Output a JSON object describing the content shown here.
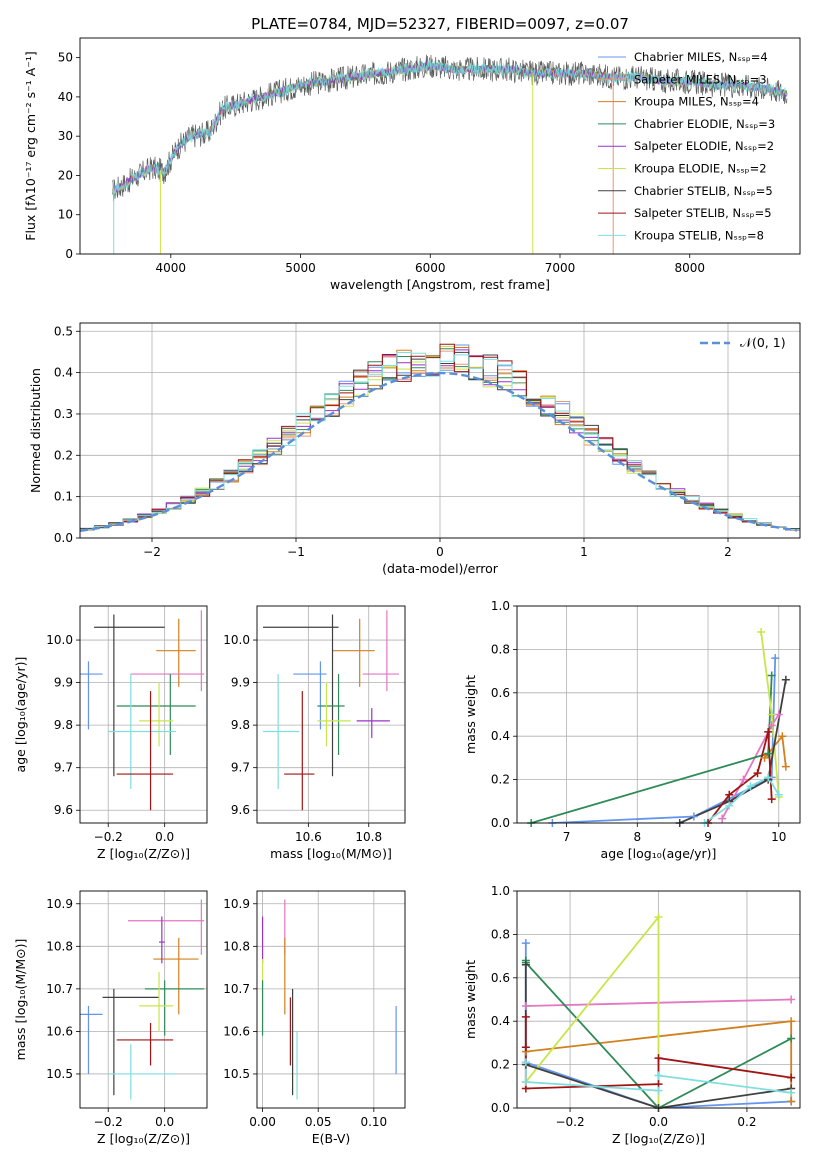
{
  "colors": {
    "chabrier_miles": "#6495ed",
    "salpeter_miles": "#e9967a",
    "kroupa_miles": "#d2801e",
    "chabrier_elodie": "#2e8b57",
    "salpeter_elodie": "#9932cc",
    "kroupa_elodie": "#c8e64b",
    "chabrier_stelib": "#404040",
    "salpeter_stelib": "#a01414",
    "kroupa_stelib": "#7fdede",
    "pink": "#e377c2",
    "normal_curve": "#5b8fd8"
  },
  "chart_data": [
    {
      "id": "spectrum",
      "type": "line",
      "title": "PLATE=0784, MJD=52327, FIBERID=0097, z=0.07",
      "xlabel": "wavelength [Angstrom, rest frame]",
      "ylabel": "Flux [fλ10⁻¹⁷ erg cm⁻² s⁻¹ A⁻¹]",
      "xlim": [
        3300,
        8850
      ],
      "ylim": [
        0,
        55
      ],
      "xticks": [
        "4000",
        "5000",
        "6000",
        "7000",
        "8000"
      ],
      "yticks": [
        "0",
        "10",
        "20",
        "30",
        "40",
        "50"
      ],
      "legend_position": "right",
      "legend": [
        {
          "label": "Chabrier MILES, Nₛₛₚ=4",
          "color": "chabrier_miles"
        },
        {
          "label": "Salpeter MILES, Nₛₛₚ=3",
          "color": "salpeter_miles"
        },
        {
          "label": "Kroupa MILES, Nₛₛₚ=4",
          "color": "kroupa_miles"
        },
        {
          "label": "Chabrier ELODIE, Nₛₛₚ=3",
          "color": "chabrier_elodie"
        },
        {
          "label": "Salpeter ELODIE, Nₛₛₚ=2",
          "color": "salpeter_elodie"
        },
        {
          "label": "Kroupa ELODIE, Nₛₛₚ=2",
          "color": "kroupa_elodie"
        },
        {
          "label": "Chabrier STELIB, Nₛₛₚ=5",
          "color": "chabrier_stelib"
        },
        {
          "label": "Salpeter STELIB, Nₛₛₚ=5",
          "color": "salpeter_stelib"
        },
        {
          "label": "Kroupa STELIB, Nₛₛₚ=8",
          "color": "kroupa_stelib"
        }
      ],
      "continuum": {
        "x": [
          3550,
          3700,
          3850,
          3950,
          4050,
          4150,
          4300,
          4400,
          4600,
          4800,
          5000,
          5200,
          5400,
          5600,
          5800,
          6000,
          6200,
          6400,
          6600,
          6800,
          7000,
          7200,
          7400,
          7600,
          7800,
          8000,
          8200,
          8400,
          8600,
          8750
        ],
        "y": [
          16,
          19,
          22,
          21,
          27,
          30,
          31,
          37,
          39,
          41,
          43,
          44,
          45,
          46,
          47,
          48,
          47,
          47,
          47,
          46,
          46,
          46,
          45,
          45,
          44,
          44,
          43,
          43,
          42,
          41
        ]
      }
    },
    {
      "id": "residuals",
      "type": "line",
      "xlabel": "(data-model)/error",
      "ylabel": "Normed distribution",
      "xlim": [
        -2.5,
        2.5
      ],
      "ylim": [
        0,
        0.52
      ],
      "xticks": [
        "−2",
        "−1",
        "0",
        "1",
        "2"
      ],
      "yticks": [
        "0.0",
        "0.1",
        "0.2",
        "0.3",
        "0.4",
        "0.5"
      ],
      "grid": true,
      "legend": [
        {
          "label": "𝒩(0, 1)",
          "color": "normal_curve"
        }
      ],
      "legend_position": "top-right",
      "bin_width": 0.1
    },
    {
      "id": "age_vs_Z",
      "type": "scatter",
      "xlabel": "Z [log₁₀(Z/Z⊙)]",
      "ylabel": "age  [log₁₀(age/yr)]",
      "xlim": [
        -0.3,
        0.15
      ],
      "ylim": [
        9.57,
        10.08
      ],
      "xticks": [
        "−0.2",
        "0.0"
      ],
      "yticks": [
        "9.6",
        "9.7",
        "9.8",
        "9.9",
        "10.0"
      ],
      "grid": true,
      "points": [
        {
          "color": "chabrier_miles",
          "x": -0.27,
          "y": 9.92,
          "xlo": -0.3,
          "xhi": -0.22,
          "ylo": 9.79,
          "yhi": 9.95
        },
        {
          "color": "kroupa_miles",
          "x": 0.05,
          "y": 9.975,
          "xlo": -0.03,
          "xhi": 0.11,
          "ylo": 9.89,
          "yhi": 10.05
        },
        {
          "color": "pink",
          "x": 0.13,
          "y": 9.92,
          "xlo": -0.12,
          "xhi": 0.14,
          "ylo": 9.88,
          "yhi": 10.07
        },
        {
          "color": "chabrier_stelib",
          "x": -0.18,
          "y": 10.03,
          "xlo": -0.25,
          "xhi": 0.0,
          "ylo": 9.68,
          "yhi": 10.06
        },
        {
          "color": "chabrier_elodie",
          "x": 0.02,
          "y": 9.845,
          "xlo": -0.17,
          "xhi": 0.11,
          "ylo": 9.73,
          "yhi": 9.92
        },
        {
          "color": "kroupa_elodie",
          "x": -0.02,
          "y": 9.81,
          "xlo": -0.09,
          "xhi": 0.03,
          "ylo": 9.75,
          "yhi": 9.9
        },
        {
          "color": "kroupa_stelib",
          "x": -0.12,
          "y": 9.785,
          "xlo": -0.2,
          "xhi": 0.04,
          "ylo": 9.65,
          "yhi": 9.92
        },
        {
          "color": "salpeter_stelib",
          "x": -0.05,
          "y": 9.685,
          "xlo": -0.17,
          "xhi": 0.03,
          "ylo": 9.6,
          "yhi": 9.88
        }
      ]
    },
    {
      "id": "age_vs_mass",
      "type": "scatter",
      "xlabel": "mass [log₁₀(M/M⊙)]",
      "ylabel": "",
      "xlim": [
        10.43,
        10.92
      ],
      "ylim": [
        9.57,
        10.08
      ],
      "xticks": [
        "10.6",
        "10.8"
      ],
      "yticks": [
        "9.6",
        "9.7",
        "9.8",
        "9.9",
        "10.0"
      ],
      "grid": true,
      "points": [
        {
          "color": "chabrier_miles",
          "x": 10.64,
          "y": 9.92,
          "xlo": 10.55,
          "xhi": 10.66,
          "ylo": 9.79,
          "yhi": 9.95
        },
        {
          "color": "kroupa_miles",
          "x": 10.77,
          "y": 9.975,
          "xlo": 10.68,
          "xhi": 10.82,
          "ylo": 9.89,
          "yhi": 10.05
        },
        {
          "color": "pink",
          "x": 10.86,
          "y": 9.92,
          "xlo": 10.78,
          "xhi": 10.9,
          "ylo": 9.88,
          "yhi": 10.07
        },
        {
          "color": "chabrier_stelib",
          "x": 10.68,
          "y": 10.03,
          "xlo": 10.45,
          "xhi": 10.7,
          "ylo": 9.68,
          "yhi": 10.06
        },
        {
          "color": "chabrier_elodie",
          "x": 10.7,
          "y": 9.845,
          "xlo": 10.63,
          "xhi": 10.72,
          "ylo": 9.73,
          "yhi": 9.92
        },
        {
          "color": "salpeter_elodie",
          "x": 10.81,
          "y": 9.81,
          "xlo": 10.76,
          "xhi": 10.87,
          "ylo": 9.77,
          "yhi": 9.84
        },
        {
          "color": "kroupa_elodie",
          "x": 10.66,
          "y": 9.81,
          "xlo": 10.63,
          "xhi": 10.74,
          "ylo": 9.75,
          "yhi": 9.9
        },
        {
          "color": "kroupa_stelib",
          "x": 10.5,
          "y": 9.785,
          "xlo": 10.45,
          "xhi": 10.57,
          "ylo": 9.65,
          "yhi": 9.92
        },
        {
          "color": "salpeter_stelib",
          "x": 10.58,
          "y": 9.685,
          "xlo": 10.52,
          "xhi": 10.62,
          "ylo": 9.6,
          "yhi": 9.88
        }
      ]
    },
    {
      "id": "weight_vs_age",
      "type": "line",
      "xlabel": "age  [log₁₀(age/yr)]",
      "ylabel": "mass weight",
      "xlim": [
        6.3,
        10.3
      ],
      "ylim": [
        0,
        1.0
      ],
      "xticks": [
        "7",
        "8",
        "9",
        "10"
      ],
      "yticks": [
        "0.0",
        "0.2",
        "0.4",
        "0.6",
        "0.8",
        "1.0"
      ],
      "grid": true,
      "series": [
        {
          "color": "chabrier_miles",
          "x": [
            6.8,
            8.8,
            9.9,
            9.95
          ],
          "y": [
            0.0,
            0.03,
            0.21,
            0.76
          ]
        },
        {
          "color": "kroupa_miles",
          "x": [
            9.8,
            10.05,
            10.1
          ],
          "y": [
            0.3,
            0.4,
            0.26
          ]
        },
        {
          "color": "pink",
          "x": [
            9.2,
            9.5,
            9.9,
            10.0
          ],
          "y": [
            0.02,
            0.2,
            0.45,
            0.5
          ]
        },
        {
          "color": "chabrier_elodie",
          "x": [
            6.5,
            9.85,
            9.9
          ],
          "y": [
            0.0,
            0.32,
            0.68
          ]
        },
        {
          "color": "kroupa_elodie",
          "x": [
            9.75,
            9.9,
            10.0
          ],
          "y": [
            0.88,
            0.5,
            0.12
          ]
        },
        {
          "color": "chabrier_stelib",
          "x": [
            8.6,
            9.3,
            9.85,
            10.1
          ],
          "y": [
            0.0,
            0.1,
            0.2,
            0.66
          ]
        },
        {
          "color": "salpeter_stelib",
          "x": [
            9.0,
            9.3,
            9.7,
            9.85,
            9.9
          ],
          "y": [
            0.0,
            0.13,
            0.23,
            0.42,
            0.11
          ]
        },
        {
          "color": "kroupa_stelib",
          "x": [
            8.95,
            9.3,
            9.6,
            9.85,
            10.0
          ],
          "y": [
            0.0,
            0.08,
            0.17,
            0.21,
            0.13
          ]
        }
      ]
    },
    {
      "id": "mass_vs_Z",
      "type": "scatter",
      "xlabel": "Z [log₁₀(Z/Z⊙)]",
      "ylabel": "mass [log₁₀(M/M⊙)]",
      "xlim": [
        -0.3,
        0.15
      ],
      "ylim": [
        10.42,
        10.93
      ],
      "xticks": [
        "−0.2",
        "0.0"
      ],
      "yticks": [
        "10.5",
        "10.6",
        "10.7",
        "10.8",
        "10.9"
      ],
      "grid": true,
      "points": [
        {
          "color": "chabrier_miles",
          "x": -0.27,
          "y": 10.64,
          "xlo": -0.3,
          "xhi": -0.22,
          "ylo": 10.5,
          "yhi": 10.66
        },
        {
          "color": "kroupa_miles",
          "x": 0.05,
          "y": 10.77,
          "xlo": -0.04,
          "xhi": 0.12,
          "ylo": 10.64,
          "yhi": 10.82
        },
        {
          "color": "pink",
          "x": 0.13,
          "y": 10.86,
          "xlo": -0.13,
          "xhi": 0.14,
          "ylo": 10.78,
          "yhi": 10.91
        },
        {
          "color": "salpeter_elodie",
          "x": -0.01,
          "y": 10.81,
          "xlo": -0.02,
          "xhi": 0.0,
          "ylo": 10.76,
          "yhi": 10.87
        },
        {
          "color": "chabrier_stelib",
          "x": -0.18,
          "y": 10.68,
          "xlo": -0.22,
          "xhi": -0.02,
          "ylo": 10.45,
          "yhi": 10.7
        },
        {
          "color": "chabrier_elodie",
          "x": 0.0,
          "y": 10.7,
          "xlo": -0.07,
          "xhi": 0.14,
          "ylo": 10.59,
          "yhi": 10.72
        },
        {
          "color": "kroupa_elodie",
          "x": -0.02,
          "y": 10.66,
          "xlo": -0.09,
          "xhi": 0.03,
          "ylo": 10.6,
          "yhi": 10.74
        },
        {
          "color": "kroupa_stelib",
          "x": -0.12,
          "y": 10.5,
          "xlo": -0.2,
          "xhi": 0.04,
          "ylo": 10.44,
          "yhi": 10.57
        },
        {
          "color": "salpeter_stelib",
          "x": -0.05,
          "y": 10.58,
          "xlo": -0.17,
          "xhi": 0.03,
          "ylo": 10.52,
          "yhi": 10.62
        }
      ]
    },
    {
      "id": "mass_vs_ebv",
      "type": "scatter",
      "xlabel": "E(B-V)",
      "ylabel": "",
      "xlim": [
        -0.005,
        0.128
      ],
      "ylim": [
        10.42,
        10.93
      ],
      "xticks": [
        "0.00",
        "0.05",
        "0.10"
      ],
      "yticks": [
        "10.5",
        "10.6",
        "10.7",
        "10.8",
        "10.9"
      ],
      "grid": true,
      "points": [
        {
          "color": "chabrier_miles",
          "x": 0.12,
          "ylo": 10.5,
          "yhi": 10.66
        },
        {
          "color": "salpeter_elodie",
          "x": 0.0,
          "ylo": 10.76,
          "yhi": 10.87
        },
        {
          "color": "kroupa_elodie",
          "x": 0.0,
          "ylo": 10.6,
          "yhi": 10.77
        },
        {
          "color": "chabrier_elodie",
          "x": 0.0,
          "ylo": 10.59,
          "yhi": 10.72
        },
        {
          "color": "pink",
          "x": 0.02,
          "ylo": 10.78,
          "yhi": 10.91
        },
        {
          "color": "kroupa_miles",
          "x": 0.02,
          "ylo": 10.64,
          "yhi": 10.82
        },
        {
          "color": "chabrier_stelib",
          "x": 0.027,
          "ylo": 10.45,
          "yhi": 10.7
        },
        {
          "color": "salpeter_stelib",
          "x": 0.025,
          "ylo": 10.52,
          "yhi": 10.68
        },
        {
          "color": "kroupa_stelib",
          "x": 0.031,
          "ylo": 10.44,
          "yhi": 10.6
        }
      ]
    },
    {
      "id": "weight_vs_Z",
      "type": "line",
      "xlabel": "Z [log₁₀(Z/Z⊙)]",
      "ylabel": "mass weight",
      "xlim": [
        -0.32,
        0.32
      ],
      "ylim": [
        0,
        1.0
      ],
      "xticks": [
        "−0.2",
        "0.0",
        "0.2"
      ],
      "yticks": [
        "0.0",
        "0.2",
        "0.4",
        "0.6",
        "0.8",
        "1.0"
      ],
      "grid": true,
      "series": [
        {
          "color": "chabrier_miles",
          "x": [
            -0.3,
            -0.3,
            0.0,
            0.3
          ],
          "y": [
            0.76,
            0.21,
            0.0,
            0.03
          ]
        },
        {
          "color": "kroupa_miles",
          "x": [
            -0.3,
            0.3,
            0.3,
            0.3
          ],
          "y": [
            0.26,
            0.4,
            0.14,
            0.03
          ]
        },
        {
          "color": "pink",
          "x": [
            -0.3,
            0.3
          ],
          "y": [
            0.47,
            0.5
          ]
        },
        {
          "color": "chabrier_elodie",
          "x": [
            -0.3,
            -0.3,
            0.0,
            0.3
          ],
          "y": [
            0.68,
            0.67,
            0.0,
            0.32
          ]
        },
        {
          "color": "kroupa_elodie",
          "x": [
            -0.3,
            0.0,
            0.0
          ],
          "y": [
            0.12,
            0.88,
            0.0
          ]
        },
        {
          "color": "chabrier_stelib",
          "x": [
            -0.3,
            -0.3,
            0.0,
            0.3
          ],
          "y": [
            0.66,
            0.2,
            0.0,
            0.09
          ]
        },
        {
          "color": "salpeter_stelib",
          "x": [
            -0.3,
            -0.3,
            -0.3,
            0.0,
            0.0,
            0.3
          ],
          "y": [
            0.42,
            0.28,
            0.09,
            0.11,
            0.23,
            0.14
          ]
        },
        {
          "color": "kroupa_stelib",
          "x": [
            -0.3,
            -0.3,
            0.0,
            0.0,
            0.3
          ],
          "y": [
            0.21,
            0.12,
            0.08,
            0.15,
            0.07
          ]
        }
      ]
    }
  ]
}
